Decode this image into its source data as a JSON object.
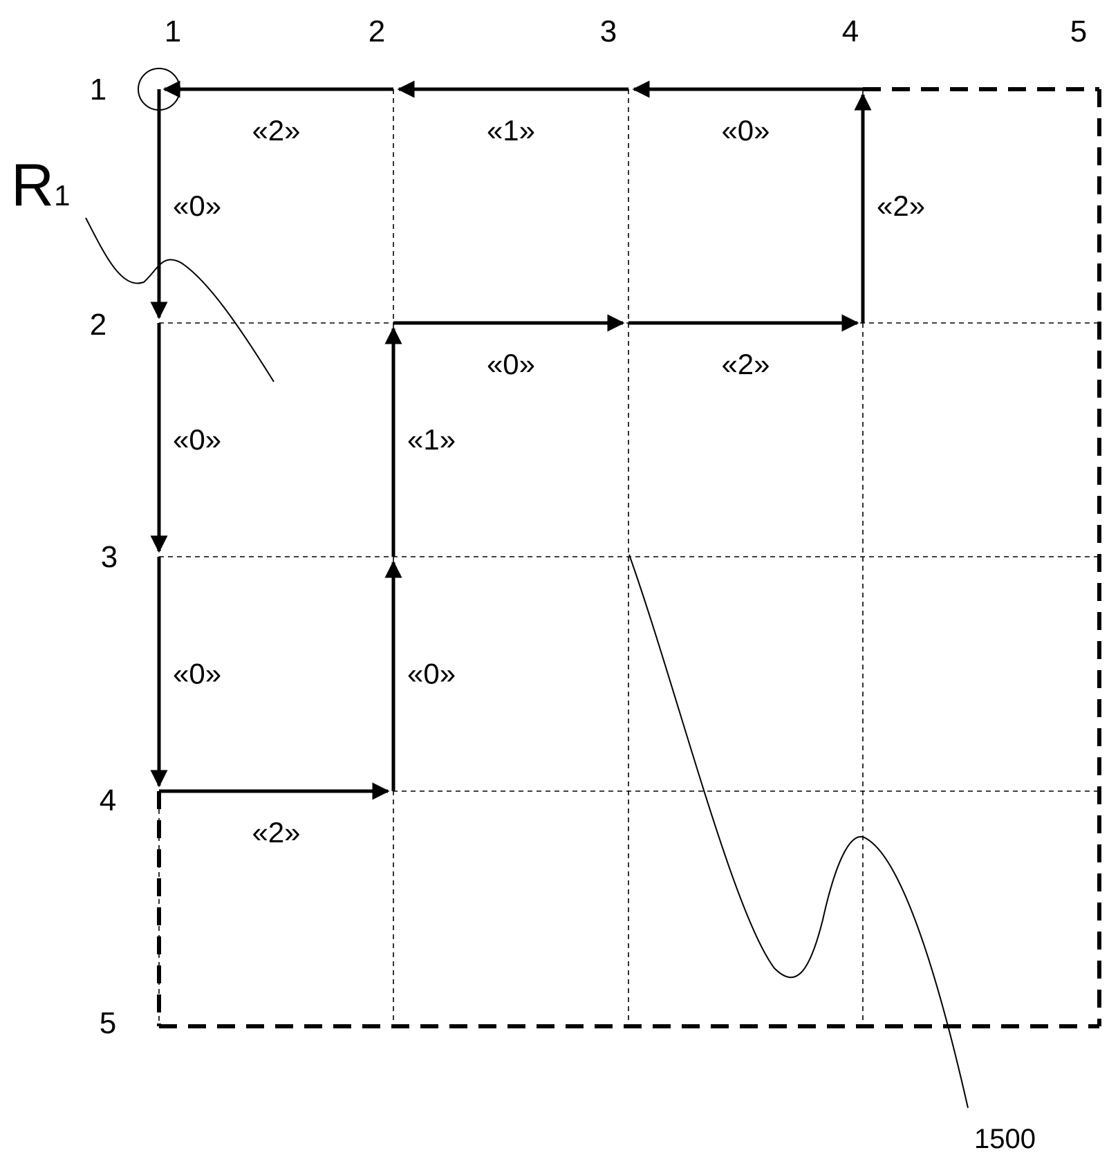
{
  "columns": [
    "1",
    "2",
    "3",
    "4",
    "5"
  ],
  "rows": [
    "1",
    "2",
    "3",
    "4",
    "5"
  ],
  "edges": [
    {
      "from": [
        1,
        1
      ],
      "to": [
        1,
        2
      ],
      "label": "«0»"
    },
    {
      "from": [
        1,
        2
      ],
      "to": [
        1,
        3
      ],
      "label": "«0»"
    },
    {
      "from": [
        1,
        3
      ],
      "to": [
        1,
        4
      ],
      "label": "«0»"
    },
    {
      "from": [
        1,
        4
      ],
      "to": [
        2,
        4
      ],
      "label": "«2»"
    },
    {
      "from": [
        2,
        4
      ],
      "to": [
        2,
        3
      ],
      "label": "«0»"
    },
    {
      "from": [
        2,
        3
      ],
      "to": [
        2,
        2
      ],
      "label": "«1»"
    },
    {
      "from": [
        2,
        2
      ],
      "to": [
        3,
        2
      ],
      "label": "«0»"
    },
    {
      "from": [
        3,
        2
      ],
      "to": [
        4,
        2
      ],
      "label": "«2»"
    },
    {
      "from": [
        4,
        2
      ],
      "to": [
        4,
        1
      ],
      "label": "«2»"
    },
    {
      "from": [
        4,
        1
      ],
      "to": [
        3,
        1
      ],
      "label": "«0»"
    },
    {
      "from": [
        3,
        1
      ],
      "to": [
        2,
        1
      ],
      "label": "«1»"
    },
    {
      "from": [
        2,
        1
      ],
      "to": [
        1,
        1
      ],
      "label": "«2»"
    }
  ],
  "start_marker": {
    "at": [
      1,
      1
    ]
  },
  "reference_R": {
    "main": "R",
    "subscript": "1"
  },
  "reference_number": "1500"
}
